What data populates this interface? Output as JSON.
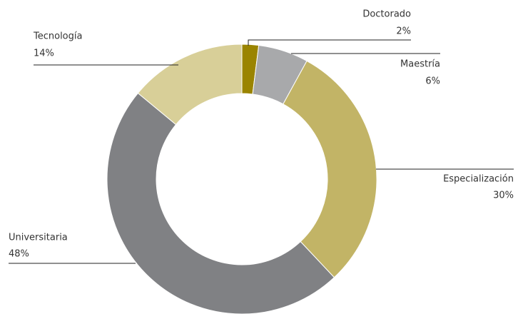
{
  "chart_data": {
    "type": "donut",
    "categories": [
      "Doctorado",
      "Maestría",
      "Especialización",
      "Universitaria",
      "Tecnología"
    ],
    "values": [
      2,
      6,
      30,
      48,
      14
    ],
    "value_labels": [
      "2%",
      "6%",
      "30%",
      "48%",
      "14%"
    ],
    "colors": [
      "#9a8400",
      "#a8a9ab",
      "#c2b466",
      "#808184",
      "#d8cf98"
    ]
  }
}
